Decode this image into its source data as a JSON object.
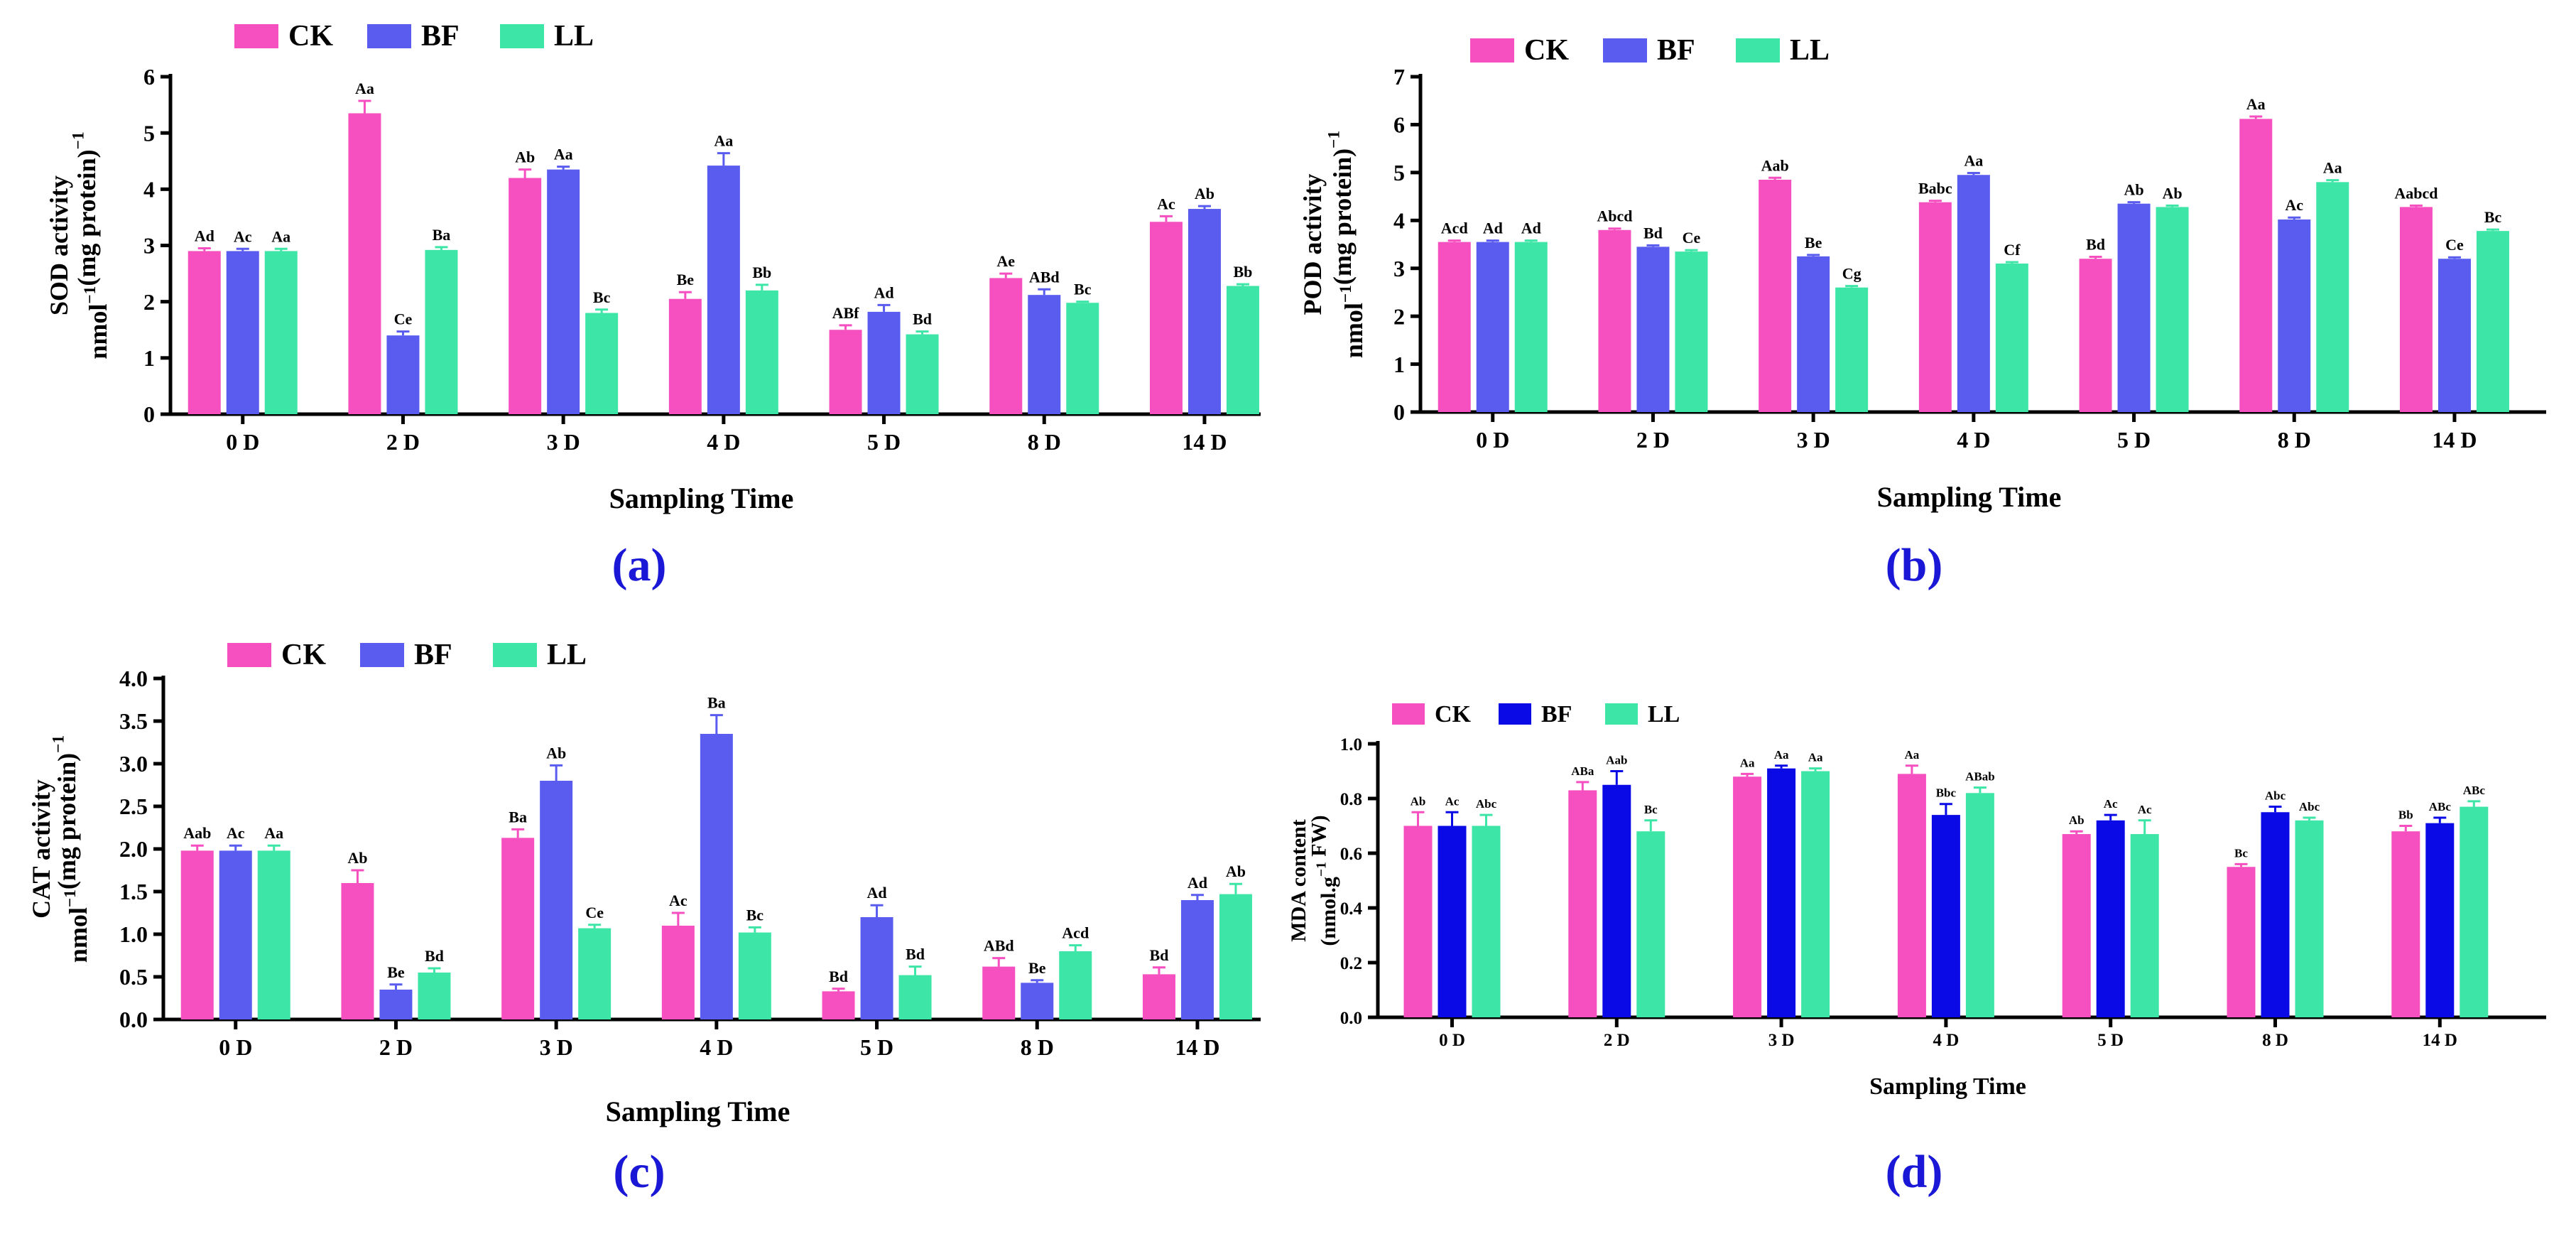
{
  "colors": {
    "CK": "#f54fc0",
    "BF": "#5a5cf0",
    "LL": "#3de6a6",
    "BF_dark": "#0a0ae6"
  },
  "chart_data": [
    {
      "id": "a",
      "type": "bar",
      "panel_label": "(a)",
      "legend": [
        "CK",
        "BF",
        "LL"
      ],
      "categories": [
        "0 D",
        "2 D",
        "3 D",
        "4 D",
        "5 D",
        "8 D",
        "14 D"
      ],
      "xlabel": "Sampling Time",
      "ylabel_1": "SOD activity",
      "ylabel_2": "nmol⁻¹(mg protein)⁻¹",
      "ylim": [
        0,
        6
      ],
      "yticks": [
        0,
        1,
        2,
        3,
        4,
        5,
        6
      ],
      "ytick_labels": [
        "0",
        "1",
        "2",
        "3",
        "4",
        "5",
        "6"
      ],
      "series": [
        {
          "name": "CK",
          "values": [
            2.9,
            5.35,
            4.2,
            2.05,
            1.5,
            2.42,
            3.42
          ],
          "errors": [
            0.05,
            0.22,
            0.15,
            0.12,
            0.08,
            0.08,
            0.1
          ],
          "labels": [
            "Ad",
            "Aa",
            "Ab",
            "Be",
            "ABf",
            "Ae",
            "Ac"
          ]
        },
        {
          "name": "BF",
          "values": [
            2.9,
            1.4,
            4.35,
            4.42,
            1.82,
            2.12,
            3.65
          ],
          "errors": [
            0.04,
            0.07,
            0.05,
            0.22,
            0.12,
            0.1,
            0.05
          ],
          "labels": [
            "Ac",
            "Ce",
            "Aa",
            "Aa",
            "Ad",
            "ABd",
            "Ab"
          ]
        },
        {
          "name": "LL",
          "values": [
            2.9,
            2.92,
            1.8,
            2.2,
            1.42,
            1.98,
            2.28
          ],
          "errors": [
            0.04,
            0.05,
            0.06,
            0.1,
            0.05,
            0.02,
            0.03
          ],
          "labels": [
            "Aa",
            "Ba",
            "Bc",
            "Bb",
            "Bd",
            "Bc",
            "Bb"
          ]
        }
      ]
    },
    {
      "id": "b",
      "type": "bar",
      "panel_label": "(b)",
      "legend": [
        "CK",
        "BF",
        "LL"
      ],
      "categories": [
        "0 D",
        "2 D",
        "3 D",
        "4 D",
        "5 D",
        "8 D",
        "14 D"
      ],
      "xlabel": "Sampling Time",
      "ylabel_1": "POD activity",
      "ylabel_2": "nmol⁻¹(mg protein)⁻¹",
      "ylim": [
        0,
        7
      ],
      "yticks": [
        0,
        1,
        2,
        3,
        4,
        5,
        6,
        7
      ],
      "ytick_labels": [
        "0",
        "1",
        "2",
        "3",
        "4",
        "5",
        "6",
        "7"
      ],
      "series": [
        {
          "name": "CK",
          "values": [
            3.55,
            3.8,
            4.85,
            4.38,
            3.2,
            6.12,
            4.28
          ],
          "errors": [
            0.03,
            0.03,
            0.04,
            0.03,
            0.04,
            0.05,
            0.03
          ],
          "labels": [
            "Acd",
            "Abcd",
            "Aab",
            "Babc",
            "Bd",
            "Aa",
            "Aabcd"
          ]
        },
        {
          "name": "BF",
          "values": [
            3.55,
            3.45,
            3.25,
            4.95,
            4.35,
            4.02,
            3.2
          ],
          "errors": [
            0.03,
            0.03,
            0.03,
            0.04,
            0.03,
            0.04,
            0.03
          ],
          "labels": [
            "Ad",
            "Bd",
            "Be",
            "Aa",
            "Ab",
            "Ac",
            "Ce"
          ]
        },
        {
          "name": "LL",
          "values": [
            3.55,
            3.35,
            2.6,
            3.1,
            4.28,
            4.8,
            3.78
          ],
          "errors": [
            0.03,
            0.03,
            0.03,
            0.03,
            0.03,
            0.04,
            0.03
          ],
          "labels": [
            "Ad",
            "Ce",
            "Cg",
            "Cf",
            "Ab",
            "Aa",
            "Bc"
          ]
        }
      ]
    },
    {
      "id": "c",
      "type": "bar",
      "panel_label": "(c)",
      "legend": [
        "CK",
        "BF",
        "LL"
      ],
      "categories": [
        "0 D",
        "2 D",
        "3 D",
        "4 D",
        "5 D",
        "8 D",
        "14 D"
      ],
      "xlabel": "Sampling Time",
      "ylabel_1": "CAT activity",
      "ylabel_2": "nmol⁻¹(mg protein)⁻¹",
      "ylim": [
        0,
        4
      ],
      "yticks": [
        0,
        0.5,
        1,
        1.5,
        2,
        2.5,
        3,
        3.5,
        4
      ],
      "ytick_labels": [
        "0.0",
        "0.5",
        "1.0",
        "1.5",
        "2.0",
        "2.5",
        "3.0",
        "3.5",
        "4.0"
      ],
      "series": [
        {
          "name": "CK",
          "values": [
            1.98,
            1.6,
            2.13,
            1.1,
            0.33,
            0.62,
            0.53
          ],
          "errors": [
            0.06,
            0.15,
            0.1,
            0.15,
            0.03,
            0.1,
            0.08
          ],
          "labels": [
            "Aab",
            "Ab",
            "Ba",
            "Ac",
            "Bd",
            "ABd",
            "Bd"
          ]
        },
        {
          "name": "BF",
          "values": [
            1.98,
            0.35,
            2.8,
            3.35,
            1.2,
            0.43,
            1.4
          ],
          "errors": [
            0.06,
            0.06,
            0.18,
            0.22,
            0.14,
            0.03,
            0.06
          ],
          "labels": [
            "Ac",
            "Be",
            "Ab",
            "Ba",
            "Ad",
            "Be",
            "Ad"
          ]
        },
        {
          "name": "LL",
          "values": [
            1.98,
            0.55,
            1.07,
            1.02,
            0.52,
            0.8,
            1.47
          ],
          "errors": [
            0.06,
            0.05,
            0.04,
            0.06,
            0.1,
            0.07,
            0.12
          ],
          "labels": [
            "Aa",
            "Bd",
            "Ce",
            "Bc",
            "Bd",
            "Acd",
            "Ab"
          ]
        }
      ]
    },
    {
      "id": "d",
      "type": "bar",
      "panel_label": "(d)",
      "legend": [
        "CK",
        "BF",
        "LL"
      ],
      "categories": [
        "0 D",
        "2 D",
        "3 D",
        "4 D",
        "5 D",
        "8 D",
        "14 D"
      ],
      "xlabel": "Sampling Time",
      "ylabel_1": "MDA content",
      "ylabel_2": "(nmol.g⁻¹ FW)",
      "ylim": [
        0,
        1
      ],
      "yticks": [
        0,
        0.2,
        0.4,
        0.6,
        0.8,
        1.0
      ],
      "ytick_labels": [
        "0.0",
        "0.2",
        "0.4",
        "0.6",
        "0.8",
        "1.0"
      ],
      "series": [
        {
          "name": "CK",
          "values": [
            0.7,
            0.83,
            0.88,
            0.89,
            0.67,
            0.55,
            0.68
          ],
          "errors": [
            0.05,
            0.03,
            0.01,
            0.03,
            0.01,
            0.01,
            0.02
          ],
          "labels": [
            "Ab",
            "ABa",
            "Aa",
            "Aa",
            "Ab",
            "Bc",
            "Bb"
          ]
        },
        {
          "name": "BF",
          "values": [
            0.7,
            0.85,
            0.91,
            0.74,
            0.72,
            0.75,
            0.71
          ],
          "errors": [
            0.05,
            0.05,
            0.01,
            0.04,
            0.02,
            0.02,
            0.02
          ],
          "labels": [
            "Ac",
            "Aab",
            "Aa",
            "Bbc",
            "Ac",
            "Abc",
            "ABc"
          ]
        },
        {
          "name": "LL",
          "values": [
            0.7,
            0.68,
            0.9,
            0.82,
            0.67,
            0.72,
            0.77
          ],
          "errors": [
            0.04,
            0.04,
            0.01,
            0.02,
            0.05,
            0.01,
            0.02
          ],
          "labels": [
            "Abc",
            "Bc",
            "Aa",
            "ABab",
            "Ac",
            "Abc",
            "ABc"
          ]
        }
      ]
    }
  ]
}
